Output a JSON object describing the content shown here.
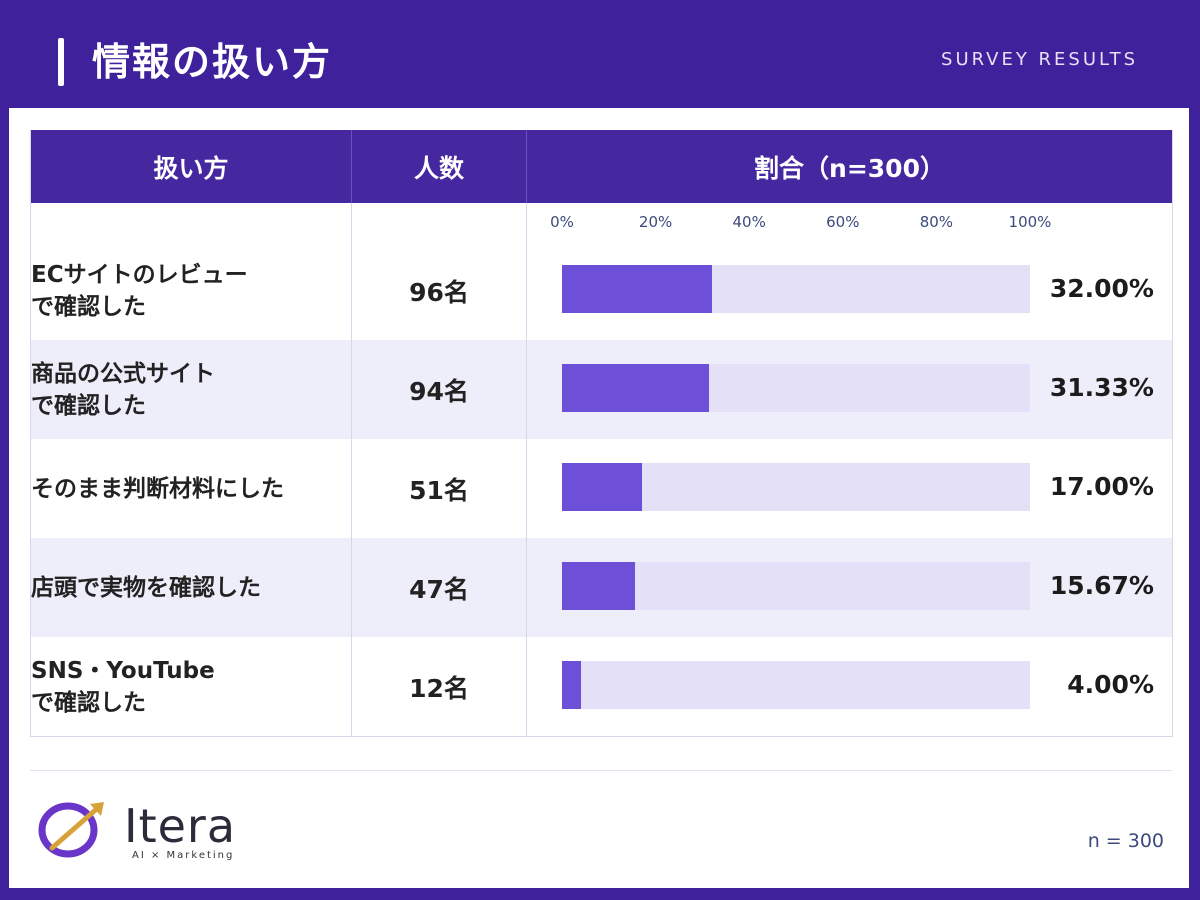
{
  "header": {
    "title": "情報の扱い方",
    "subtitle": "SURVEY RESULTS"
  },
  "table": {
    "columns": [
      "扱い方",
      "人数",
      "割合（n=300）"
    ],
    "axis_ticks": [
      "0%",
      "20%",
      "40%",
      "60%",
      "80%",
      "100%"
    ],
    "rows": [
      {
        "label_line1": "ECサイトのレビュー",
        "label_line2": "で確認した",
        "count": "96名",
        "pct_text": "32.00%"
      },
      {
        "label_line1": "商品の公式サイト",
        "label_line2": "で確認した",
        "count": "94名",
        "pct_text": "31.33%"
      },
      {
        "label_line1": "そのまま判断材料にした",
        "label_line2": "",
        "count": "51名",
        "pct_text": "17.00%"
      },
      {
        "label_line1": "店頭で実物を確認した",
        "label_line2": "",
        "count": "47名",
        "pct_text": "15.67%"
      },
      {
        "label_line1": "SNS・YouTube",
        "label_line2": "で確認した",
        "count": "12名",
        "pct_text": "4.00%"
      }
    ]
  },
  "chart_data": {
    "type": "bar",
    "orientation": "horizontal",
    "categories": [
      "ECサイトのレビューで確認した",
      "商品の公式サイトで確認した",
      "そのまま判断材料にした",
      "店頭で実物を確認した",
      "SNS・YouTubeで確認した"
    ],
    "values": [
      32.0,
      31.33,
      17.0,
      15.67,
      4.0
    ],
    "counts": [
      96,
      94,
      51,
      47,
      12
    ],
    "xlim": [
      0,
      100
    ],
    "x_ticks": [
      0,
      20,
      40,
      60,
      80,
      100
    ],
    "title": "情報の扱い方",
    "xlabel": "割合（n=300）",
    "colors": {
      "bar": "#6e4fd8",
      "track": "#e3e0f7",
      "header": "#4527a0",
      "page": "#3f219b"
    }
  },
  "footer": {
    "logo_text": "Itera",
    "logo_tagline": "AI × Marketing",
    "note": "n = 300"
  }
}
